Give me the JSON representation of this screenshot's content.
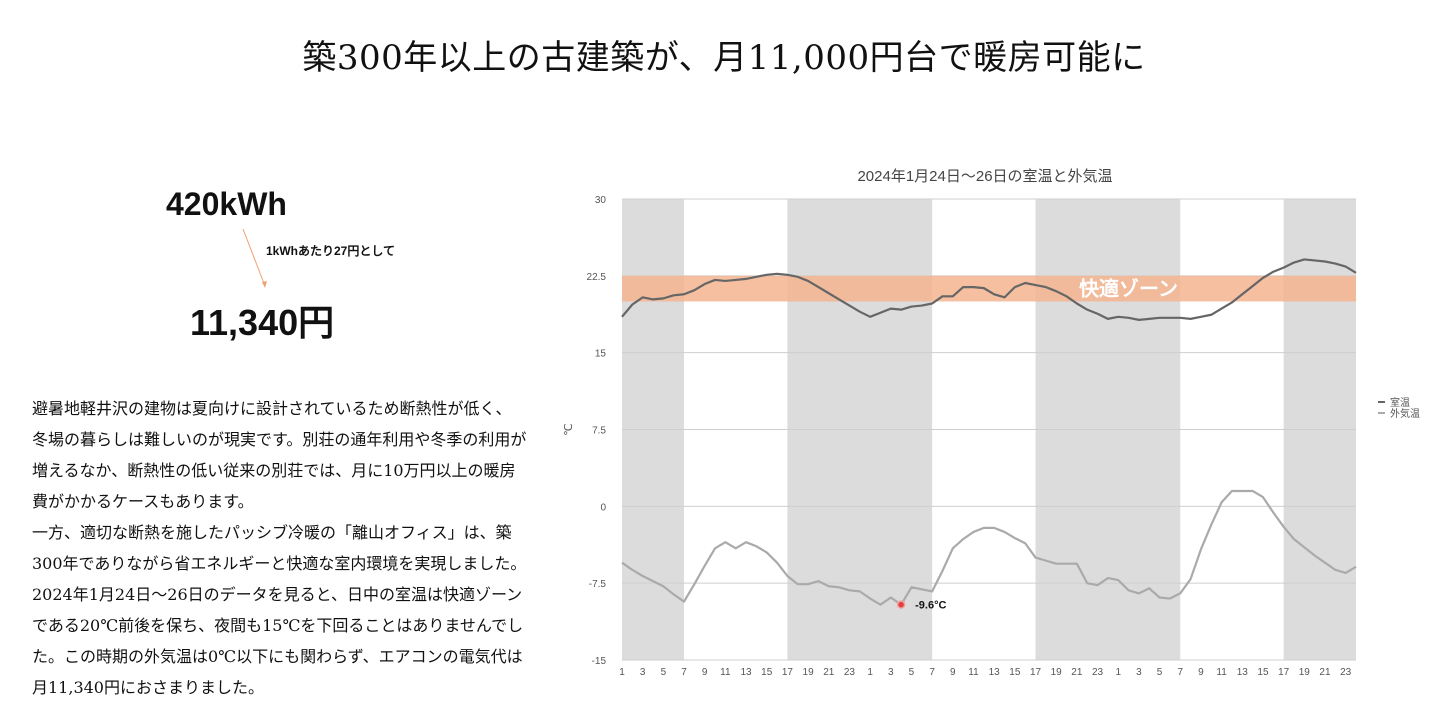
{
  "title": "築300年以上の古建築が、月11,000円台で暖房可能に",
  "energy": {
    "kwh": "420kWh",
    "rate_note": "1kWhあたり27円として",
    "cost": "11,340円"
  },
  "body_text": {
    "p1": "避暑地軽井沢の建物は夏向けに設計されているため断熱性が低く、冬場の暮らしは難しいのが現実です。別荘の通年利用や冬季の利用が増えるなか、断熱性の低い従来の別荘では、月に10万円以上の暖房費がかかるケースもあります。",
    "p2": "一方、適切な断熱を施したパッシブ冷暖の「離山オフィス」は、築300年でありながら省エネルギーと快適な室内環境を実現しました。2024年1月24日〜26日のデータを見ると、日中の室温は快適ゾーンである20℃前後を保ち、夜間も15℃を下回ることはありませんでした。この時期の外気温は0℃以下にも関わらず、エアコンの電気代は月11,340円におさまりました。"
  },
  "chart_data": {
    "type": "line",
    "title": "2024年1月24日〜26日の室温と外気温",
    "ylabel": "℃",
    "xlabel": "",
    "ylim": [
      -15,
      30
    ],
    "y_ticks": [
      "30",
      "22.5",
      "15",
      "7.5",
      "0",
      "-7.5",
      "-15"
    ],
    "x_tick_labels": [
      "1",
      "3",
      "5",
      "7",
      "9",
      "11",
      "13",
      "15",
      "17",
      "19",
      "21",
      "23",
      "1",
      "3",
      "5",
      "7",
      "9",
      "11",
      "13",
      "15",
      "17",
      "19",
      "21",
      "23",
      "1",
      "3",
      "5",
      "7",
      "9",
      "11",
      "13",
      "15",
      "17",
      "19",
      "21",
      "23"
    ],
    "x": [
      1,
      2,
      3,
      4,
      5,
      6,
      7,
      8,
      9,
      10,
      11,
      12,
      13,
      14,
      15,
      16,
      17,
      18,
      19,
      20,
      21,
      22,
      23,
      24,
      25,
      26,
      27,
      28,
      29,
      30,
      31,
      32,
      33,
      34,
      35,
      36,
      37,
      38,
      39,
      40,
      41,
      42,
      43,
      44,
      45,
      46,
      47,
      48,
      49,
      50,
      51,
      52,
      53,
      54,
      55,
      56,
      57,
      58,
      59,
      60,
      61,
      62,
      63,
      64,
      65,
      66,
      67,
      68,
      69,
      70,
      71,
      72
    ],
    "comfort_zone": {
      "label": "快適ゾーン",
      "range": [
        20,
        22.5
      ],
      "color": "#f3b48f"
    },
    "night_bands": [
      [
        1,
        7
      ],
      [
        17,
        31
      ],
      [
        41,
        55
      ],
      [
        65,
        72
      ]
    ],
    "series": [
      {
        "name": "室温",
        "color": "#666666",
        "values": [
          18.5,
          19.7,
          20.4,
          20.2,
          20.3,
          20.6,
          20.7,
          21.1,
          21.7,
          22.1,
          22.0,
          22.1,
          22.2,
          22.4,
          22.6,
          22.7,
          22.6,
          22.4,
          22.0,
          21.4,
          20.8,
          20.2,
          19.6,
          19.0,
          18.5,
          18.9,
          19.3,
          19.2,
          19.5,
          19.6,
          19.8,
          20.5,
          20.5,
          21.4,
          21.4,
          21.3,
          20.7,
          20.4,
          21.4,
          21.8,
          21.6,
          21.4,
          21.0,
          20.5,
          19.8,
          19.2,
          18.8,
          18.3,
          18.5,
          18.4,
          18.2,
          18.3,
          18.4,
          18.4,
          18.4,
          18.3,
          18.5,
          18.7,
          19.3,
          19.9,
          20.7,
          21.5,
          22.3,
          22.9,
          23.3,
          23.8,
          24.1,
          24.0,
          23.9,
          23.7,
          23.4,
          22.8
        ]
      },
      {
        "name": "外気温",
        "color": "#aaaaaa",
        "values": [
          -5.5,
          -6.2,
          -6.8,
          -7.3,
          -7.8,
          -8.6,
          -9.3,
          -7.6,
          -5.8,
          -4.1,
          -3.5,
          -4.1,
          -3.5,
          -3.9,
          -4.5,
          -5.5,
          -6.8,
          -7.6,
          -7.6,
          -7.3,
          -7.8,
          -7.9,
          -8.2,
          -8.3,
          -9.0,
          -9.6,
          -8.9,
          -9.6,
          -7.9,
          -8.1,
          -8.3,
          -6.3,
          -4.1,
          -3.2,
          -2.5,
          -2.1,
          -2.1,
          -2.5,
          -3.1,
          -3.6,
          -5.0,
          -5.3,
          -5.6,
          -5.6,
          -5.6,
          -7.5,
          -7.7,
          -7.0,
          -7.2,
          -8.2,
          -8.5,
          -8.0,
          -8.9,
          -9.0,
          -8.5,
          -7.1,
          -4.2,
          -1.8,
          0.4,
          1.5,
          1.5,
          1.5,
          0.9,
          -0.6,
          -2.0,
          -3.2,
          -4.0,
          -4.8,
          -5.5,
          -6.2,
          -6.5,
          -5.9
        ]
      }
    ],
    "annotation": {
      "label": "-9.6°C",
      "x": 28,
      "y": -9.6
    },
    "legend": {
      "position": "right"
    }
  }
}
